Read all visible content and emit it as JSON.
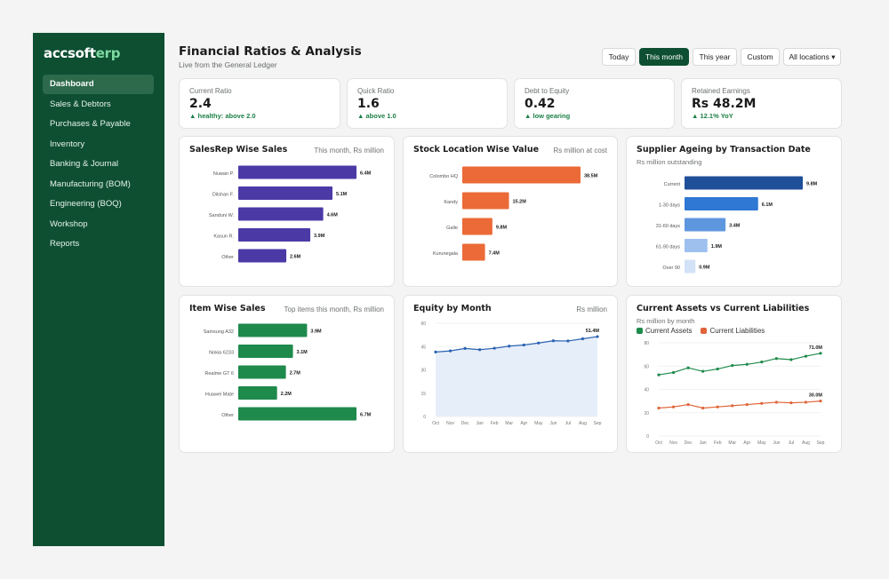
{
  "app": {
    "brand_prefix": "accsoft",
    "brand_suffix": "erp"
  },
  "sidebar": {
    "items": [
      {
        "label": "Dashboard",
        "active": true
      },
      {
        "label": "Sales & Debtors"
      },
      {
        "label": "Purchases & Payable"
      },
      {
        "label": "Inventory"
      },
      {
        "label": "Banking & Journal"
      },
      {
        "label": "Manufacturing (BOM)"
      },
      {
        "label": "Engineering (BOQ)"
      },
      {
        "label": "Workshop"
      },
      {
        "label": "Reports"
      }
    ]
  },
  "header": {
    "title": "Financial Ratios & Analysis",
    "subtitle": "Live from the General Ledger",
    "filters": {
      "today": "Today",
      "this_month": "This month",
      "this_year": "This year",
      "custom": "Custom",
      "locations": "All locations ▾"
    },
    "active_filter": "This month"
  },
  "kpis": [
    {
      "label": "Current Ratio",
      "value": "2.4",
      "delta": "▲ healthy: above 2.0"
    },
    {
      "label": "Quick Ratio",
      "value": "1.6",
      "delta": "▲ above 1.0"
    },
    {
      "label": "Debt to Equity",
      "value": "0.42",
      "delta": "▲ low gearing"
    },
    {
      "label": "Retained Earnings",
      "value": "Rs 48.2M",
      "delta": "▲ 12.1% YoY"
    }
  ],
  "colors": {
    "sidebar": "#0e4f32",
    "purple": "#4b3aa6",
    "orange": "#ec6a37",
    "green": "#1e8a4c",
    "blue_line": "#2a62b0",
    "area_fill": "#e6eefa",
    "liab": "#e0643a"
  },
  "chart_data": [
    {
      "id": "salesrep",
      "type": "bar",
      "orientation": "horizontal",
      "title": "SalesRep Wise Sales",
      "note": "This month, Rs million",
      "categories": [
        "Nuwan P.",
        "Dilshan F.",
        "Sanduni W.",
        "Kasun R.",
        "Other"
      ],
      "values": [
        6.4,
        5.1,
        4.6,
        3.9,
        2.6
      ],
      "value_labels": [
        "6.4M",
        "5.1M",
        "4.6M",
        "3.9M",
        "2.6M"
      ],
      "colors": [
        "#4b3aa6"
      ]
    },
    {
      "id": "stock",
      "type": "bar",
      "orientation": "horizontal",
      "title": "Stock Location Wise Value",
      "note": "Rs million at cost",
      "categories": [
        "Colombo HQ",
        "Kandy",
        "Galle",
        "Kurunegala"
      ],
      "values": [
        38.5,
        15.2,
        9.8,
        7.4
      ],
      "value_labels": [
        "38.5M",
        "15.2M",
        "9.8M",
        "7.4M"
      ],
      "colors": [
        "#ec6a37"
      ]
    },
    {
      "id": "ageing",
      "type": "bar",
      "orientation": "horizontal",
      "title": "Supplier Ageing by Transaction Date",
      "subtitle": "Rs million outstanding",
      "categories": [
        "Current",
        "1-30 days",
        "31-60 days",
        "61-90 days",
        "Over 90"
      ],
      "values": [
        9.8,
        6.1,
        3.4,
        1.9,
        0.9
      ],
      "value_labels": [
        "9.8M",
        "6.1M",
        "3.4M",
        "1.9M",
        "0.9M"
      ],
      "colors": [
        "#1f4f99",
        "#2f78d4",
        "#5f97df",
        "#9dc0ee",
        "#d3e3f7"
      ]
    },
    {
      "id": "item",
      "type": "bar",
      "orientation": "horizontal",
      "title": "Item Wise Sales",
      "note": "Top items this month, Rs million",
      "categories": [
        "Samsung A32",
        "Nokia 6233",
        "Realme GT 6",
        "Huawei Mate",
        "Other"
      ],
      "values": [
        3.9,
        3.1,
        2.7,
        2.2,
        6.7
      ],
      "value_labels": [
        "3.9M",
        "3.1M",
        "2.7M",
        "2.2M",
        "6.7M"
      ],
      "colors": [
        "#1e8a4c"
      ]
    },
    {
      "id": "equity",
      "type": "area",
      "title": "Equity by Month",
      "note": "Rs million",
      "x": [
        "Oct",
        "Nov",
        "Dec",
        "Jan",
        "Feb",
        "Mar",
        "Apr",
        "May",
        "Jun",
        "Jul",
        "Aug",
        "Sep"
      ],
      "y": [
        41.5,
        42.2,
        43.8,
        43.0,
        43.9,
        45.3,
        46.0,
        47.3,
        48.7,
        48.6,
        50.0,
        51.4
      ],
      "ylim": [
        0,
        60
      ],
      "yticks": [
        0,
        15,
        30,
        45,
        60
      ],
      "end_label": "51.4M",
      "grid": true
    },
    {
      "id": "assets",
      "type": "line",
      "title": "Current Assets vs Current Liabilities",
      "subtitle": "Rs million by month",
      "x": [
        "Oct",
        "Nov",
        "Dec",
        "Jan",
        "Feb",
        "Mar",
        "Apr",
        "May",
        "Jun",
        "Jul",
        "Aug",
        "Sep"
      ],
      "series": [
        {
          "name": "Current Assets",
          "color": "#1e8a4c",
          "values": [
            52.5,
            54.5,
            58.5,
            55.5,
            57.5,
            60.5,
            61.5,
            63.5,
            66.5,
            65.5,
            68.5,
            71.0
          ],
          "end_label": "71.0M"
        },
        {
          "name": "Current Liabilities",
          "color": "#e0643a",
          "values": [
            24.0,
            25.0,
            27.0,
            24.0,
            25.0,
            26.0,
            27.0,
            28.0,
            29.0,
            28.5,
            29.0,
            30.0
          ],
          "end_label": "30.0M"
        }
      ],
      "ylim": [
        0,
        80
      ],
      "yticks": [
        0,
        20,
        40,
        60,
        80
      ],
      "grid": true,
      "legend": "top-left"
    }
  ]
}
